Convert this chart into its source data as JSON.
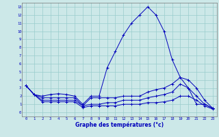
{
  "xlabel": "Graphe des températures (°c)",
  "background_color": "#cce8e8",
  "grid_color": "#99cccc",
  "line_color": "#0000bb",
  "xlim": [
    -0.5,
    23.5
  ],
  "ylim": [
    -0.5,
    13.5
  ],
  "line1_y": [
    3.3,
    2.2,
    2.0,
    2.2,
    2.3,
    2.2,
    2.0,
    1.0,
    2.0,
    2.0,
    5.5,
    7.5,
    9.5,
    11.0,
    12.0,
    13.0,
    12.0,
    10.0,
    6.5,
    4.3,
    3.0,
    1.0,
    1.0,
    0.5
  ],
  "line2_y": [
    3.3,
    2.2,
    1.8,
    1.8,
    1.8,
    1.8,
    1.8,
    0.8,
    1.8,
    1.8,
    1.8,
    1.8,
    2.0,
    2.0,
    2.0,
    2.5,
    2.8,
    3.0,
    3.5,
    4.3,
    4.0,
    3.0,
    1.5,
    0.5
  ],
  "line3_y": [
    3.3,
    2.2,
    1.5,
    1.5,
    1.5,
    1.5,
    1.5,
    0.8,
    1.0,
    1.0,
    1.2,
    1.2,
    1.5,
    1.5,
    1.5,
    1.8,
    2.0,
    2.2,
    2.5,
    3.5,
    3.0,
    2.0,
    1.0,
    0.5
  ],
  "line4_y": [
    3.3,
    2.2,
    1.3,
    1.3,
    1.3,
    1.3,
    1.3,
    0.6,
    0.8,
    0.8,
    0.8,
    0.8,
    1.0,
    1.0,
    1.0,
    1.2,
    1.2,
    1.3,
    1.5,
    2.0,
    2.0,
    1.5,
    0.8,
    0.4
  ]
}
